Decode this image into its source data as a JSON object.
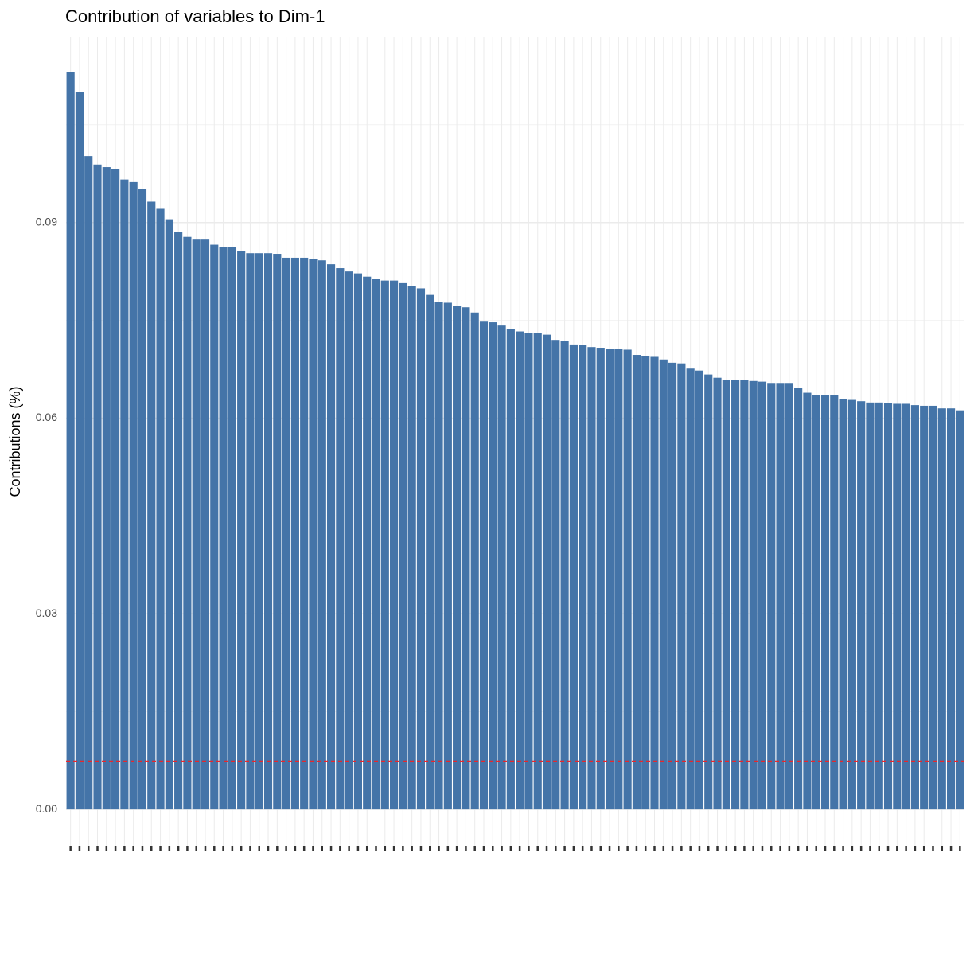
{
  "chart_data": {
    "type": "bar",
    "title": "Contribution of variables to Dim-1",
    "ylabel": "Contributions (%)",
    "categories": [
      null,
      null,
      null,
      null,
      null,
      null,
      null,
      null,
      null,
      null,
      null,
      null,
      null,
      null,
      null,
      null,
      null,
      null,
      null,
      null,
      null,
      null,
      null,
      null,
      null,
      null,
      null,
      null,
      null,
      null,
      null,
      null,
      null,
      null,
      null,
      null,
      null,
      null,
      null,
      null,
      null,
      null,
      null,
      null,
      null,
      null,
      null,
      null,
      null,
      null,
      null,
      null,
      null,
      null,
      null,
      null,
      null,
      null,
      null,
      null,
      null,
      null,
      null,
      null,
      null,
      null,
      null,
      null,
      null,
      null,
      null,
      null,
      null,
      null,
      null,
      null,
      null,
      null,
      null,
      null,
      null,
      null,
      null,
      null,
      null,
      null,
      null,
      null,
      null,
      null,
      null,
      null,
      null,
      null,
      null,
      null,
      null,
      null,
      null,
      null
    ],
    "values": [
      0.1131,
      0.1101,
      0.1002,
      0.0989,
      0.0985,
      0.0982,
      0.0966,
      0.0962,
      0.0952,
      0.0932,
      0.0921,
      0.0905,
      0.0886,
      0.0878,
      0.0875,
      0.0875,
      0.0866,
      0.0863,
      0.0862,
      0.0856,
      0.0853,
      0.0853,
      0.0853,
      0.0852,
      0.0846,
      0.0846,
      0.0846,
      0.0844,
      0.0842,
      0.0836,
      0.083,
      0.0825,
      0.0822,
      0.0817,
      0.0813,
      0.0811,
      0.0811,
      0.0807,
      0.0802,
      0.0799,
      0.0789,
      0.0778,
      0.0777,
      0.0772,
      0.077,
      0.0762,
      0.0748,
      0.0747,
      0.0742,
      0.0737,
      0.0733,
      0.073,
      0.073,
      0.0728,
      0.072,
      0.0719,
      0.0713,
      0.0712,
      0.0709,
      0.0708,
      0.0706,
      0.0706,
      0.0705,
      0.0697,
      0.0695,
      0.0694,
      0.069,
      0.0685,
      0.0684,
      0.0676,
      0.0673,
      0.0667,
      0.0662,
      0.0658,
      0.0658,
      0.0658,
      0.0657,
      0.0656,
      0.0654,
      0.0654,
      0.0654,
      0.0646,
      0.0639,
      0.0636,
      0.0635,
      0.0635,
      0.0629,
      0.0628,
      0.0626,
      0.0624,
      0.0624,
      0.0623,
      0.0622,
      0.0622,
      0.062,
      0.0619,
      0.0619,
      0.0615,
      0.0615,
      0.0612
    ],
    "color": "#4474a8",
    "ylim": [
      -0.0056,
      0.1184
    ],
    "yticks": [
      {
        "value": 0,
        "label": "0.00"
      },
      0.03,
      0.06,
      0.09
    ],
    "minor_yticks": [
      0.015,
      0.045,
      0.075,
      0.105
    ],
    "reference_line": {
      "value": 0.0074,
      "color": "#e8262a"
    },
    "grid": true
  }
}
